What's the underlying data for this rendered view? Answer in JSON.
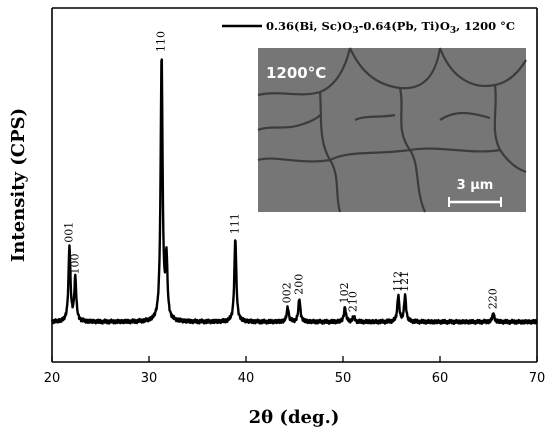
{
  "chart_data": {
    "type": "line",
    "xlabel": "2θ (deg.)",
    "ylabel": "Intensity (CPS)",
    "xlim": [
      20,
      70
    ],
    "x_ticks": [
      "20",
      "30",
      "40",
      "50",
      "60",
      "70"
    ],
    "y_tick_labels_shown": false,
    "grid": false,
    "legend": {
      "position": "top-right",
      "text": "0.36(Bi, Sc)O3-0.64(Pb, Ti)O3, 1200 °C"
    },
    "series": [
      {
        "name": "0.36(Bi, Sc)O3-0.64(Pb, Ti)O3, 1200 °C",
        "baseline": 0.08,
        "peaks": [
          {
            "x": 21.8,
            "y": 0.34,
            "label": "001"
          },
          {
            "x": 22.4,
            "y": 0.23,
            "label": "100"
          },
          {
            "x": 31.3,
            "y": 1.0,
            "label": "110"
          },
          {
            "x": 31.8,
            "y": 0.29,
            "label": ""
          },
          {
            "x": 38.9,
            "y": 0.37,
            "label": "111"
          },
          {
            "x": 44.3,
            "y": 0.13,
            "label": "002"
          },
          {
            "x": 45.5,
            "y": 0.16,
            "label": "200"
          },
          {
            "x": 50.2,
            "y": 0.13,
            "label": "102"
          },
          {
            "x": 51.1,
            "y": 0.1,
            "label": "210"
          },
          {
            "x": 55.7,
            "y": 0.17,
            "label": "112"
          },
          {
            "x": 56.4,
            "y": 0.17,
            "label": "121"
          },
          {
            "x": 65.5,
            "y": 0.11,
            "label": "220"
          }
        ]
      }
    ]
  },
  "legend_parts": {
    "prefix": "0.36(Bi, Sc)O",
    "sub1": "3",
    "middle": "-0.64(Pb, Ti)O",
    "sub2": "3",
    "suffix": ", 1200 °C"
  },
  "inset": {
    "label": "1200°C",
    "scale_bar": "3 μm",
    "background": "#767676"
  },
  "colors": {
    "line": "#000000",
    "background": "#ffffff"
  }
}
